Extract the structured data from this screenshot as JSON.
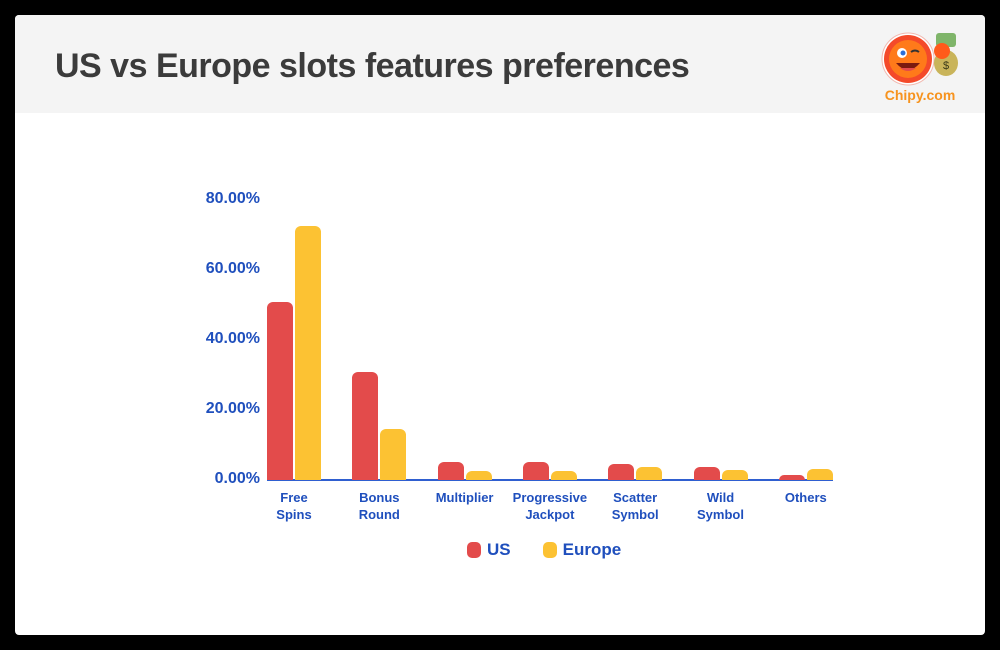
{
  "header": {
    "title": "US vs Europe slots features preferences",
    "logo_text": "Chipy.com"
  },
  "colors": {
    "us": "#e34b4b",
    "europe": "#fcc233",
    "axis_text": "#1f4fbd",
    "baseline": "#2f5fd0"
  },
  "legend": {
    "us": "US",
    "europe": "Europe"
  },
  "y_ticks": [
    "80.00%",
    "60.00%",
    "40.00%",
    "20.00%",
    "0.00%"
  ],
  "x_labels": [
    [
      "Free",
      "Spins"
    ],
    [
      "Bonus",
      "Round"
    ],
    [
      "Multiplier",
      ""
    ],
    [
      "Progressive",
      "Jackpot"
    ],
    [
      "Scatter",
      "Symbol"
    ],
    [
      "Wild",
      "Symbol"
    ],
    [
      "Others",
      ""
    ]
  ],
  "chart_data": {
    "type": "bar",
    "title": "US vs Europe slots features preferences",
    "xlabel": "",
    "ylabel": "",
    "categories": [
      "Free Spins",
      "Bonus Round",
      "Multiplier",
      "Progressive Jackpot",
      "Scatter Symbol",
      "Wild Symbol",
      "Others"
    ],
    "series": [
      {
        "name": "US",
        "color": "#e34b4b",
        "values": [
          50.9,
          30.9,
          5.1,
          5.1,
          4.6,
          3.7,
          1.4
        ]
      },
      {
        "name": "Europe",
        "color": "#fcc233",
        "values": [
          72.6,
          14.6,
          2.6,
          2.6,
          3.7,
          2.9,
          3.1
        ]
      }
    ],
    "ylim": [
      0,
      80
    ],
    "y_tick_format": "0.00%",
    "grid": false,
    "legend_position": "bottom"
  }
}
